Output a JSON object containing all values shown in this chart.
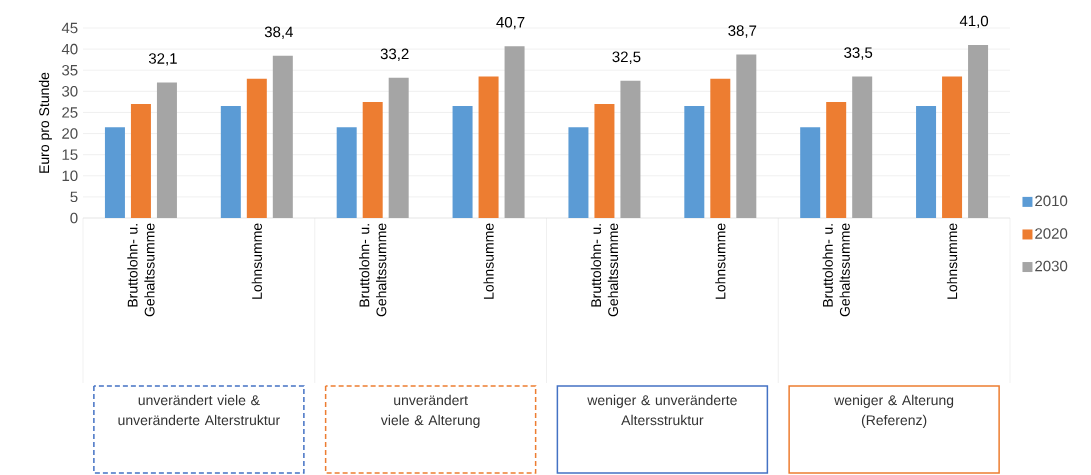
{
  "chart_data": {
    "type": "bar",
    "ylabel": "Euro pro Stunde",
    "categories": [
      "Bruttolohn- u. Gehaltssumme",
      "Lohnsumme",
      "Bruttolohn- u. Gehaltssumme",
      "Lohnsumme",
      "Bruttolohn- u. Gehaltssumme",
      "Lohnsumme",
      "Bruttolohn- u. Gehaltssumme",
      "Lohnsumme"
    ],
    "series": [
      {
        "name": "2010",
        "color": "#5b9bd5",
        "values": [
          21.5,
          26.5,
          21.5,
          26.5,
          21.5,
          26.5,
          21.5,
          26.5
        ]
      },
      {
        "name": "2020",
        "color": "#ed7d31",
        "values": [
          27.0,
          33.0,
          27.5,
          33.5,
          27.0,
          33.0,
          27.5,
          33.5
        ]
      },
      {
        "name": "2030",
        "color": "#a5a5a5",
        "values": [
          32.1,
          38.4,
          33.2,
          40.7,
          32.5,
          38.7,
          33.5,
          41.0
        ],
        "value_labels": [
          "32,1",
          "38,4",
          "33,2",
          "40,7",
          "32,5",
          "38,7",
          "33,5",
          "41,0"
        ]
      }
    ],
    "ylim": [
      0,
      45
    ],
    "yticks": [
      0,
      5,
      10,
      15,
      20,
      25,
      30,
      35,
      40,
      45
    ],
    "grid": "y",
    "legend": "right",
    "annotations": [
      "unverändert viele & unveränderte Alterstruktur",
      "unverändert viele & Alterung",
      "weniger & unveränderte Altersstruktur",
      "weniger & Alterung (Referenz)"
    ]
  }
}
